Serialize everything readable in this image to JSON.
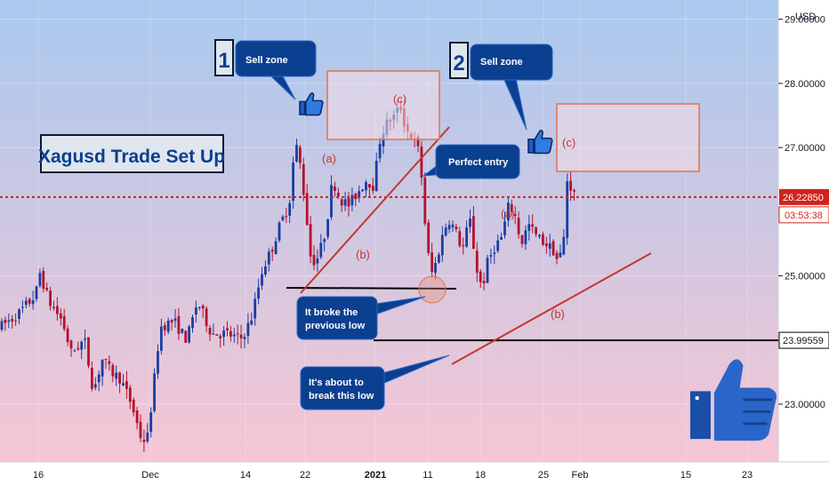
{
  "chart_data": {
    "type": "candlestick",
    "title": "Xagusd Trade Set Up",
    "currency_label": "USD",
    "price_axis": {
      "range": [
        22.1,
        29.3
      ],
      "ticks": [
        {
          "value": 29.0,
          "label": "29.00000"
        },
        {
          "value": 28.0,
          "label": "28.00000"
        },
        {
          "value": 27.0,
          "label": "27.00000"
        },
        {
          "value": 25.0,
          "label": "25.00000"
        },
        {
          "value": 23.0,
          "label": "23.00000"
        }
      ]
    },
    "time_axis": {
      "ticks": [
        {
          "label": "16",
          "bold": false
        },
        {
          "label": "Dec",
          "bold": false
        },
        {
          "label": "14",
          "bold": false
        },
        {
          "label": "22",
          "bold": false
        },
        {
          "label": "2021",
          "bold": true
        },
        {
          "label": "11",
          "bold": false
        },
        {
          "label": "18",
          "bold": false
        },
        {
          "label": "25",
          "bold": false
        },
        {
          "label": "Feb",
          "bold": false
        },
        {
          "label": "15",
          "bold": false
        },
        {
          "label": "23",
          "bold": false
        }
      ]
    },
    "current_price": {
      "value": 26.2285,
      "label": "26.22850",
      "countdown": "03:53:38"
    },
    "support_level": {
      "value": 23.99559,
      "label": "23.99559"
    },
    "price_path": [
      [
        0,
        24.2
      ],
      [
        20,
        24.4
      ],
      [
        40,
        24.7
      ],
      [
        45,
        25.05
      ],
      [
        55,
        24.6
      ],
      [
        70,
        24.3
      ],
      [
        80,
        23.8
      ],
      [
        95,
        24.0
      ],
      [
        105,
        23.2
      ],
      [
        115,
        23.7
      ],
      [
        125,
        23.5
      ],
      [
        135,
        23.4
      ],
      [
        148,
        23.0
      ],
      [
        158,
        22.5
      ],
      [
        165,
        22.4
      ],
      [
        172,
        23.2
      ],
      [
        180,
        24.2
      ],
      [
        195,
        24.3
      ],
      [
        210,
        24.0
      ],
      [
        222,
        24.6
      ],
      [
        238,
        24.1
      ],
      [
        255,
        24.1
      ],
      [
        270,
        24.0
      ],
      [
        282,
        24.3
      ],
      [
        295,
        25.1
      ],
      [
        305,
        25.4
      ],
      [
        315,
        25.8
      ],
      [
        325,
        26.1
      ],
      [
        332,
        27.1
      ],
      [
        338,
        26.7
      ],
      [
        344,
        26.0
      ],
      [
        350,
        25.2
      ],
      [
        358,
        25.3
      ],
      [
        366,
        25.7
      ],
      [
        374,
        26.5
      ],
      [
        382,
        26.2
      ],
      [
        392,
        26.1
      ],
      [
        402,
        26.3
      ],
      [
        412,
        26.5
      ],
      [
        420,
        26.4
      ],
      [
        428,
        27.2
      ],
      [
        436,
        27.4
      ],
      [
        444,
        27.5
      ],
      [
        450,
        27.65
      ],
      [
        456,
        27.3
      ],
      [
        464,
        27.15
      ],
      [
        472,
        26.9
      ],
      [
        478,
        25.8
      ],
      [
        484,
        25.0
      ],
      [
        490,
        25.2
      ],
      [
        497,
        25.6
      ],
      [
        504,
        25.9
      ],
      [
        512,
        25.7
      ],
      [
        520,
        25.4
      ],
      [
        528,
        25.9
      ],
      [
        536,
        25.1
      ],
      [
        542,
        24.8
      ],
      [
        548,
        25.2
      ],
      [
        556,
        25.45
      ],
      [
        564,
        25.6
      ],
      [
        572,
        26.1
      ],
      [
        578,
        26.0
      ],
      [
        586,
        25.5
      ],
      [
        594,
        25.8
      ],
      [
        604,
        25.6
      ],
      [
        614,
        25.5
      ],
      [
        622,
        25.4
      ],
      [
        628,
        25.2
      ],
      [
        634,
        25.6
      ],
      [
        637,
        26.5
      ],
      [
        640,
        26.45
      ],
      [
        644,
        26.3
      ],
      [
        648,
        26.23
      ]
    ],
    "annotations": {
      "zone1_number": "1",
      "zone2_number": "2",
      "sell_zone_1": "Sell zone",
      "sell_zone_2": "Sell zone",
      "perfect_entry": "Perfect entry",
      "broke_low_line1": "It broke the",
      "broke_low_line2": "previous low",
      "about_break_line1": "It's about to",
      "about_break_line2": "break this low",
      "wave_a1": "(a)",
      "wave_b1": "(b)",
      "wave_c1": "(c)",
      "wave_a2": "(a)",
      "wave_b2": "(b)",
      "wave_c2": "(c)"
    },
    "colors": {
      "background_top": "#a9c9ef",
      "background_bottom": "#f6c6d4",
      "candle_up": "#1a3ea0",
      "candle_down": "#b3122c",
      "callout_fill": "#0b3f8f",
      "trendline": "#c0392b",
      "sell_zone_border": "#e0734c",
      "current_price_line": "#d0241c",
      "thumb": "#1f5cc4"
    }
  }
}
